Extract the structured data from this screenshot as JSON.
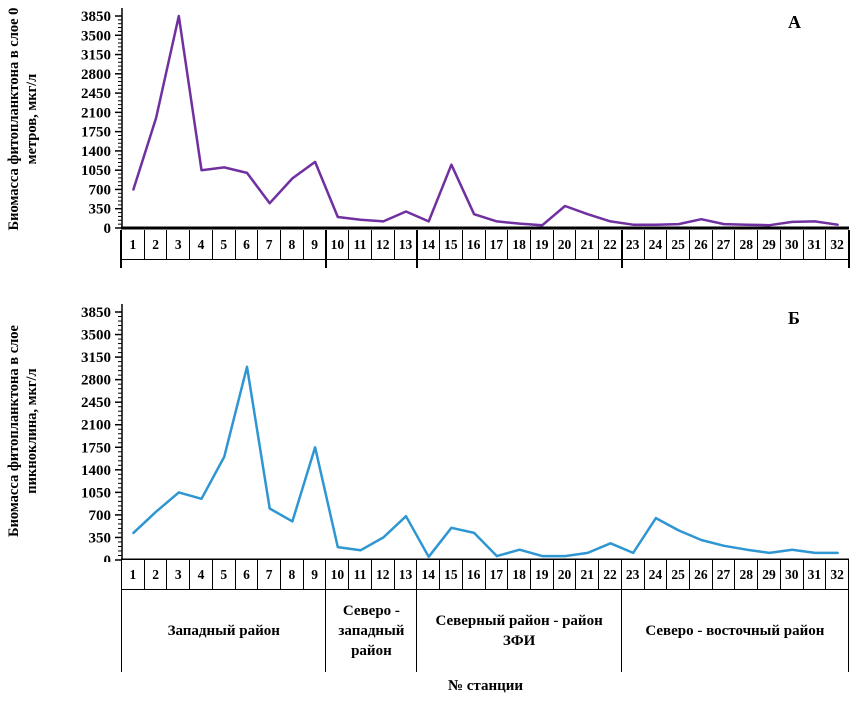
{
  "figure": {
    "x_axis_title": "№ станции"
  },
  "chart_data": [
    {
      "type": "line",
      "panel_label": "А",
      "y_axis_title": "Биомасса фитопланктона в слое 0 метров, мкг/л",
      "line_color": "#7030a0",
      "ylim": [
        0,
        3850
      ],
      "y_ticks": [
        0,
        350,
        700,
        1050,
        1400,
        1750,
        2100,
        2450,
        2800,
        3150,
        3500,
        3850
      ],
      "grid": false,
      "legend": "none",
      "categories": [
        "1",
        "2",
        "3",
        "4",
        "5",
        "6",
        "7",
        "8",
        "9",
        "10",
        "11",
        "12",
        "13",
        "14",
        "15",
        "16",
        "17",
        "18",
        "19",
        "20",
        "21",
        "22",
        "23",
        "24",
        "25",
        "26",
        "27",
        "28",
        "29",
        "30",
        "31",
        "32"
      ],
      "values": [
        700,
        2000,
        3850,
        1050,
        1100,
        1000,
        450,
        900,
        1200,
        200,
        150,
        120,
        300,
        120,
        1150,
        250,
        120,
        80,
        50,
        400,
        250,
        120,
        60,
        60,
        70,
        160,
        70,
        60,
        50,
        110,
        120,
        60
      ]
    },
    {
      "type": "line",
      "panel_label": "Б",
      "y_axis_title": "Биомасса фитопланктона в слое пикноклина, мкг/л",
      "line_color": "#2e96d2",
      "ylim": [
        0,
        3850
      ],
      "y_ticks": [
        0,
        350,
        700,
        1050,
        1400,
        1750,
        2100,
        2450,
        2800,
        3150,
        3500,
        3850
      ],
      "grid": false,
      "legend": "none",
      "categories": [
        "1",
        "2",
        "3",
        "4",
        "5",
        "6",
        "7",
        "8",
        "9",
        "10",
        "11",
        "12",
        "13",
        "14",
        "15",
        "16",
        "17",
        "18",
        "19",
        "20",
        "21",
        "22",
        "23",
        "24",
        "25",
        "26",
        "27",
        "28",
        "29",
        "30",
        "31",
        "32"
      ],
      "values": [
        420,
        750,
        1050,
        950,
        1600,
        3000,
        800,
        600,
        1750,
        200,
        150,
        350,
        680,
        50,
        500,
        420,
        60,
        160,
        60,
        60,
        110,
        260,
        110,
        650,
        460,
        310,
        220,
        160,
        110,
        160,
        110,
        110
      ],
      "region_groups": [
        {
          "label": "Западный район",
          "stations": [
            1,
            9
          ]
        },
        {
          "label": "Северо - западный район",
          "stations": [
            10,
            13
          ]
        },
        {
          "label": "Северный район - район ЗФИ",
          "stations": [
            14,
            22
          ]
        },
        {
          "label": "Северо - восточный район",
          "stations": [
            23,
            32
          ]
        }
      ]
    }
  ]
}
